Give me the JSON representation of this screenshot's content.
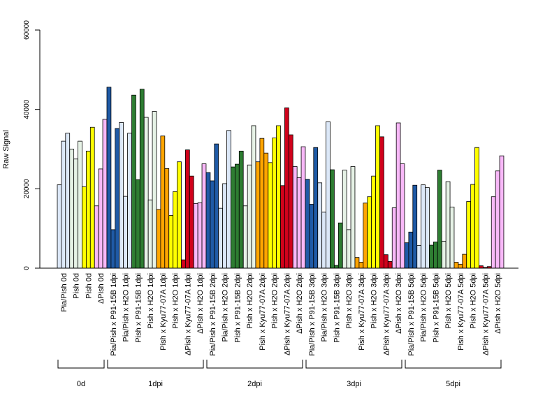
{
  "chart_data": {
    "type": "bar",
    "ylabel": "Raw Signal",
    "ylim": [
      0,
      60000
    ],
    "yticks": [
      0,
      20000,
      40000,
      60000
    ],
    "grid": false,
    "legend": "none",
    "bars_per_category": 3,
    "categories": [
      {
        "label": "Pia/Pish 0d",
        "color": "#dce8f8",
        "values": [
          21000,
          32000,
          34000
        ]
      },
      {
        "label": "Pish 0d",
        "color": "#e6f2e6",
        "values": [
          30000,
          27500,
          32000
        ]
      },
      {
        "label": "Pish 0d",
        "color": "#ffff00",
        "values": [
          20500,
          29500,
          35500
        ]
      },
      {
        "label": "ΔPish 0d",
        "color": "#f8b8f8",
        "values": [
          15700,
          25000,
          37500
        ]
      },
      {
        "label": "Pia/Pish x P91-15B 1dpi",
        "color": "#1f5aa6",
        "values": [
          45600,
          9700,
          35200
        ]
      },
      {
        "label": "Pia/Pish x H2O 1dpi",
        "color": "#dce8f8",
        "values": [
          36700,
          18100,
          34000
        ]
      },
      {
        "label": "Pish x P91-15B 1dpi",
        "color": "#2e7d32",
        "values": [
          43600,
          22300,
          45100
        ]
      },
      {
        "label": "Pish x H2O 1dpi",
        "color": "#e6f2e6",
        "values": [
          38000,
          17200,
          39500
        ]
      },
      {
        "label": "Pish x Kyu77-07A 1dpi",
        "color": "#ffa500",
        "values": [
          14800,
          33300,
          25100
        ]
      },
      {
        "label": "Pish x H2O 1dpi",
        "color": "#ffff00",
        "values": [
          13300,
          19300,
          26800
        ]
      },
      {
        "label": "ΔPish x Kyu77-07A 1dpi",
        "color": "#d0021b",
        "values": [
          2100,
          29800,
          23200
        ]
      },
      {
        "label": "ΔPish x H2O 1dpi",
        "color": "#f8b8f8",
        "values": [
          16300,
          16500,
          26300
        ]
      },
      {
        "label": "Pia/Pish x P91-15B 2dpi",
        "color": "#1f5aa6",
        "values": [
          24100,
          22000,
          31300
        ]
      },
      {
        "label": "Pia/Pish x H2O 2dpi",
        "color": "#dce8f8",
        "values": [
          15100,
          21300,
          34700
        ]
      },
      {
        "label": "Pish x P91-15B 2dpi",
        "color": "#2e7d32",
        "values": [
          25500,
          26200,
          29500
        ]
      },
      {
        "label": "Pish x H2O 2dpi",
        "color": "#e6f2e6",
        "values": [
          15700,
          26000,
          35900
        ]
      },
      {
        "label": "Pish x Kyu77-07A 2dpi",
        "color": "#ffa500",
        "values": [
          26800,
          32700,
          29000
        ]
      },
      {
        "label": "Pish x H2O 2dpi",
        "color": "#ffff00",
        "values": [
          26600,
          32800,
          35900
        ]
      },
      {
        "label": "ΔPish x Kyu77-07A 2dpi",
        "color": "#d0021b",
        "values": [
          20800,
          40400,
          33600
        ]
      },
      {
        "label": "ΔPish x H2O 2dpi",
        "color": "#f8b8f8",
        "values": [
          25600,
          22800,
          30600
        ]
      },
      {
        "label": "Pia/Pish x P91-15B 3dpi",
        "color": "#1f5aa6",
        "values": [
          22400,
          16100,
          30400
        ]
      },
      {
        "label": "Pia/Pish x H2O 3dpi",
        "color": "#dce8f8",
        "values": [
          21500,
          14100,
          36900
        ]
      },
      {
        "label": "Pish x P91-15B 3dpi",
        "color": "#2e7d32",
        "values": [
          24800,
          700,
          11400
        ]
      },
      {
        "label": "Pish x H2O 3dpi",
        "color": "#e6f2e6",
        "values": [
          24700,
          9700,
          25600
        ]
      },
      {
        "label": "Pish x Kyu77-07A 3dpi",
        "color": "#ffa500",
        "values": [
          2700,
          1500,
          16400
        ]
      },
      {
        "label": "Pish x H2O 3dpi",
        "color": "#ffff00",
        "values": [
          18000,
          23200,
          35900
        ]
      },
      {
        "label": "ΔPish x Kyu77-07A 3dpi",
        "color": "#d0021b",
        "values": [
          33100,
          3400,
          1700
        ]
      },
      {
        "label": "ΔPish x H2O 3dpi",
        "color": "#f8b8f8",
        "values": [
          15200,
          36600,
          26300
        ]
      },
      {
        "label": "Pia/Pish x P91-15B 5dpi",
        "color": "#1f5aa6",
        "values": [
          6400,
          9100,
          20900
        ]
      },
      {
        "label": "Pia/Pish x H2O 5dpi",
        "color": "#dce8f8",
        "values": [
          5700,
          21000,
          20300
        ]
      },
      {
        "label": "Pish x P91-15B 5dpi",
        "color": "#2e7d32",
        "values": [
          5800,
          6600,
          24700
        ]
      },
      {
        "label": "Pish x H2O 5dpi",
        "color": "#e6f2e6",
        "values": [
          6800,
          21800,
          15400
        ]
      },
      {
        "label": "Pish x Kyu77-07A 5dpi",
        "color": "#ffa500",
        "values": [
          1500,
          1000,
          3500
        ]
      },
      {
        "label": "Pish x H2O 5dpi",
        "color": "#ffff00",
        "values": [
          16800,
          21100,
          30400
        ]
      },
      {
        "label": "ΔPish x Kyu77-07A 5dpi",
        "color": "#d0021b",
        "values": [
          600,
          200,
          400
        ]
      },
      {
        "label": "ΔPish x H2O 5dpi",
        "color": "#f8b8f8",
        "values": [
          18000,
          24500,
          28300
        ]
      }
    ],
    "groups": [
      {
        "label": "0d",
        "first": 0,
        "last": 3
      },
      {
        "label": "1dpi",
        "first": 4,
        "last": 11
      },
      {
        "label": "2dpi",
        "first": 12,
        "last": 19
      },
      {
        "label": "3dpi",
        "first": 20,
        "last": 27
      },
      {
        "label": "5dpi",
        "first": 28,
        "last": 35
      }
    ]
  }
}
